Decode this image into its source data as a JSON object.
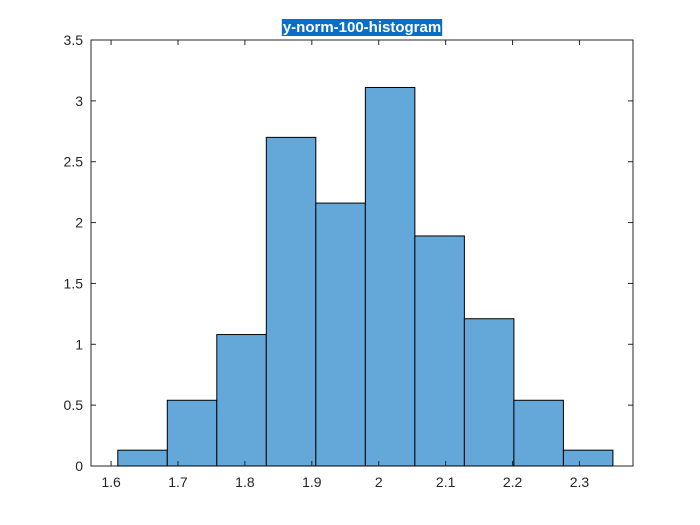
{
  "chart_data": {
    "type": "bar",
    "title": "y-norm-100-histogram",
    "xlabel": "",
    "ylabel": "",
    "bin_edges": [
      1.61,
      1.684,
      1.758,
      1.832,
      1.906,
      1.98,
      2.054,
      2.128,
      2.202,
      2.276,
      2.35
    ],
    "values": [
      0.13,
      0.54,
      1.08,
      2.7,
      2.16,
      3.11,
      1.89,
      1.21,
      0.54,
      0.13
    ],
    "xlim": [
      1.57,
      2.38
    ],
    "ylim": [
      0,
      3.5
    ],
    "xticks": [
      1.6,
      1.7,
      1.8,
      1.9,
      2.0,
      2.1,
      2.2,
      2.3
    ],
    "xtick_labels": [
      "1.6",
      "1.7",
      "1.8",
      "1.9",
      "2",
      "2.1",
      "2.2",
      "2.3"
    ],
    "yticks": [
      0,
      0.5,
      1,
      1.5,
      2,
      2.5,
      3,
      3.5
    ],
    "ytick_labels": [
      "0",
      "0.5",
      "1",
      "1.5",
      "2",
      "2.5",
      "3",
      "3.5"
    ],
    "bar_color": "#63A8D9",
    "edge_color": "#000000",
    "title_highlight_color": "#0A6EC8",
    "grid": false
  }
}
